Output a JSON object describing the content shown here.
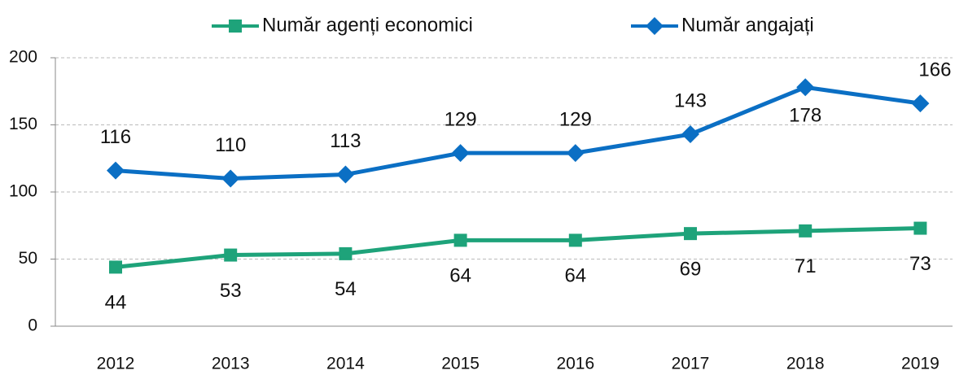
{
  "chart_data": {
    "type": "line",
    "categories": [
      "2012",
      "2013",
      "2014",
      "2015",
      "2016",
      "2017",
      "2018",
      "2019"
    ],
    "series": [
      {
        "name": "Număr agenți economici",
        "color": "#1ea37a",
        "marker": "square",
        "values": [
          44,
          53,
          54,
          64,
          64,
          69,
          71,
          73
        ]
      },
      {
        "name": "Număr angajați",
        "color": "#0b6fc4",
        "marker": "diamond",
        "values": [
          116,
          110,
          113,
          129,
          129,
          143,
          178,
          166
        ]
      }
    ],
    "ylim": [
      0,
      200
    ],
    "yticks": [
      0,
      50,
      100,
      150,
      200
    ],
    "grid": true,
    "legend": "top"
  }
}
